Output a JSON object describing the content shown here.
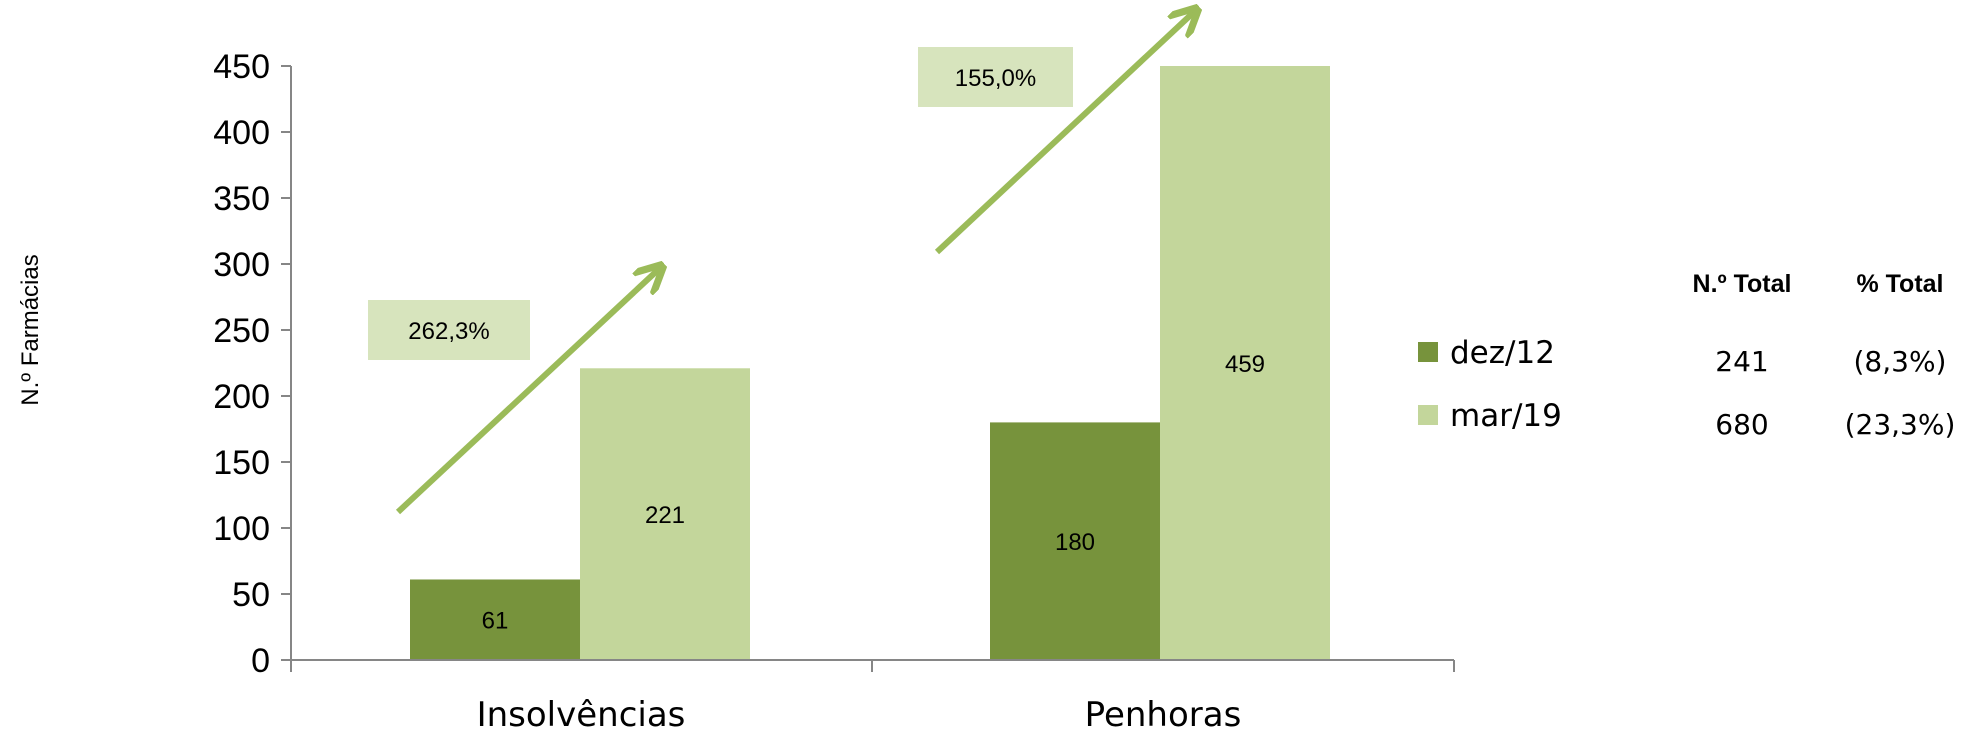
{
  "chart_data": {
    "type": "bar",
    "categories": [
      "Insolvências",
      "Penhoras"
    ],
    "series": [
      {
        "name": "dez/12",
        "values": [
          61,
          180
        ],
        "color": "#77933c"
      },
      {
        "name": "mar/19",
        "values": [
          221,
          459
        ],
        "color": "#c3d69b"
      }
    ],
    "ylabel": "N.º Farmácias",
    "ylim": [
      0,
      450
    ],
    "yticks": [
      0,
      50,
      100,
      150,
      200,
      250,
      300,
      350,
      400,
      450
    ],
    "grid": false,
    "legend_position": "right",
    "annotations": [
      {
        "category": "Insolvências",
        "text": "262,3%"
      },
      {
        "category": "Penhoras",
        "text": "155,0%"
      }
    ],
    "arrow_color": "#9bbb59",
    "annotation_bg": "#d7e4bd"
  },
  "side_table": {
    "headers": [
      "N.º Total",
      "% Total"
    ],
    "rows": [
      [
        "241",
        "(8,3%)"
      ],
      [
        "680",
        "(23,3%)"
      ]
    ]
  }
}
